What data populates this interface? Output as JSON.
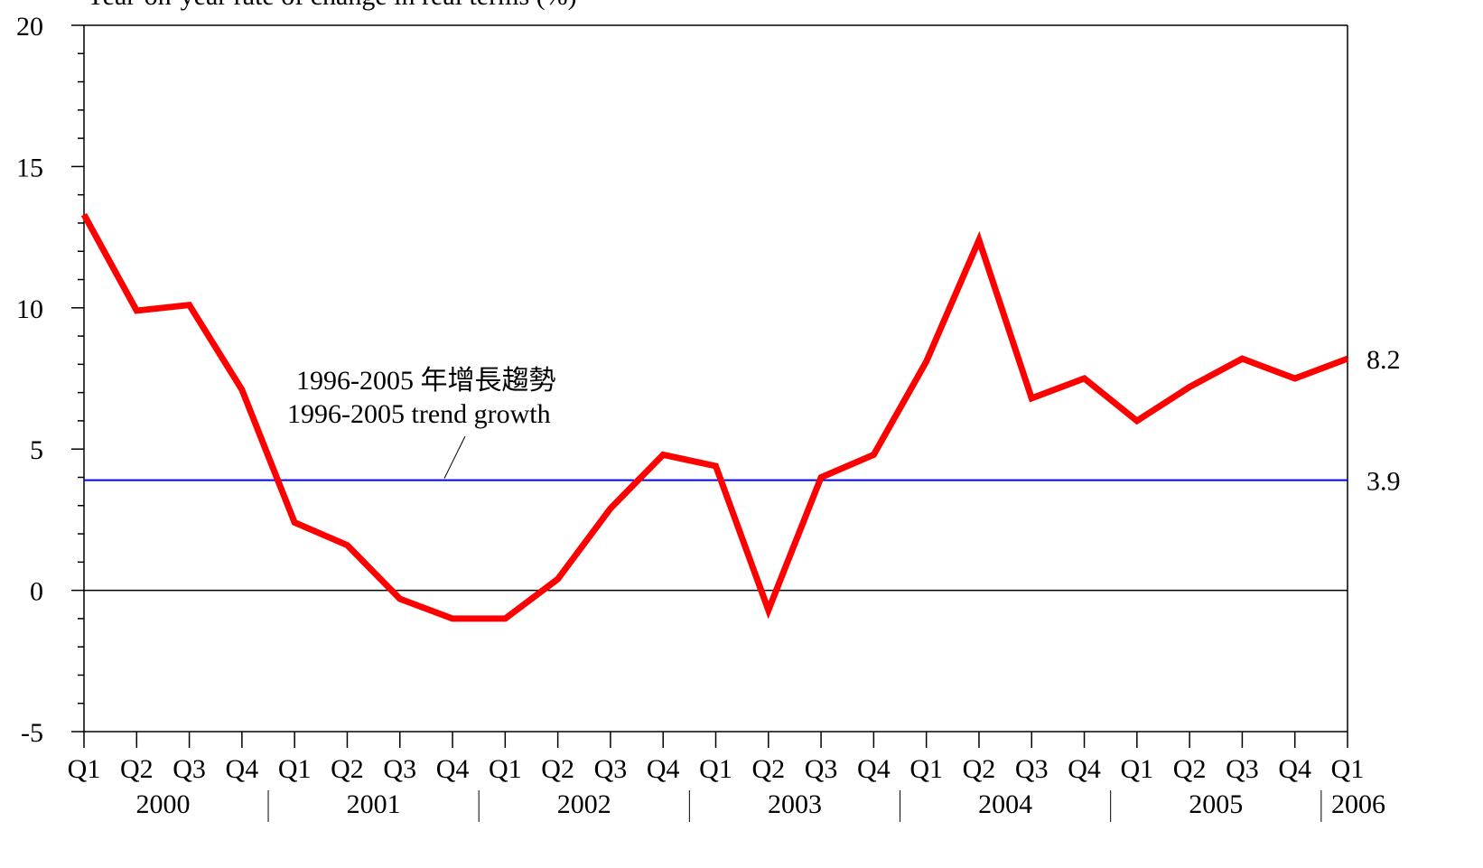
{
  "chart_data": {
    "type": "line",
    "title": "Year-on-year rate of change in real terms (%)",
    "categories": [
      "Q1",
      "Q2",
      "Q3",
      "Q4",
      "Q1",
      "Q2",
      "Q3",
      "Q4",
      "Q1",
      "Q2",
      "Q3",
      "Q4",
      "Q1",
      "Q2",
      "Q3",
      "Q4",
      "Q1",
      "Q2",
      "Q3",
      "Q4",
      "Q1",
      "Q2",
      "Q3",
      "Q4",
      "Q1"
    ],
    "years": [
      "2000",
      "2001",
      "2002",
      "2003",
      "2004",
      "2005",
      "2006"
    ],
    "series": [
      {
        "color": "#ff0000",
        "values": [
          13.3,
          9.9,
          10.1,
          7.1,
          2.4,
          1.6,
          -0.3,
          -1.0,
          -1.0,
          0.4,
          2.9,
          4.8,
          4.4,
          -0.7,
          4.0,
          4.8,
          8.1,
          12.4,
          6.8,
          7.5,
          6.0,
          7.2,
          8.2,
          7.5,
          8.2
        ]
      }
    ],
    "trend": {
      "value": 3.9,
      "color": "#0000ff",
      "annotation": [
        "1996-2005 年增長趨勢",
        "1996-2005 trend growth"
      ]
    },
    "ylim": [
      -5,
      20
    ],
    "yticks": [
      -5,
      0,
      5,
      10,
      15,
      20
    ],
    "yminorticks": [
      -4,
      -3,
      -2,
      -1,
      1,
      2,
      3,
      4,
      6,
      7,
      8,
      9,
      11,
      12,
      13,
      14,
      16,
      17,
      18,
      19
    ]
  }
}
